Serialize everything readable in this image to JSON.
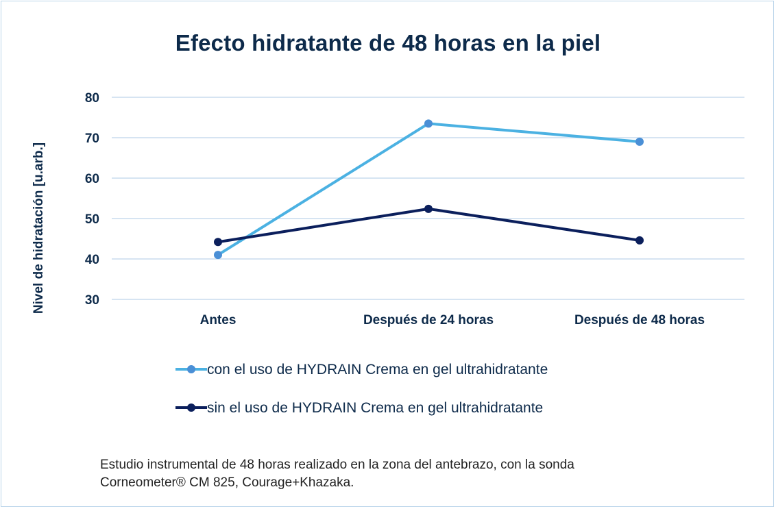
{
  "colors": {
    "series1": "#4bb1e2",
    "series1_marker": "#4a8fd6",
    "series2": "#0b1f5c",
    "grid": "#c9dced",
    "text": "#0d2a4a"
  },
  "chart_data": {
    "type": "line",
    "title": "Efecto hidratante de 48 horas en la piel",
    "ylabel": "Nivel de hidratación [u.arb.]",
    "xlabel": "",
    "categories": [
      "Antes",
      "Después de 24 horas",
      "Después de 48 horas"
    ],
    "ylim": [
      30,
      80
    ],
    "yticks": [
      "80",
      "70",
      "60",
      "50",
      "40",
      "30"
    ],
    "grid": true,
    "legend_position": "bottom",
    "series": [
      {
        "name": "con el uso de HYDRAIN Crema en gel ultrahidratante",
        "values": [
          41,
          73.5,
          69
        ]
      },
      {
        "name": "sin el uso de HYDRAIN Crema en gel ultrahidratante",
        "values": [
          44.2,
          52.4,
          44.6
        ]
      }
    ]
  },
  "footnote": {
    "line1": "Estudio instrumental de 48 horas realizado en la zona del antebrazo, con la sonda",
    "line2": "Corneometer® CM 825, Courage+Khazaka."
  }
}
